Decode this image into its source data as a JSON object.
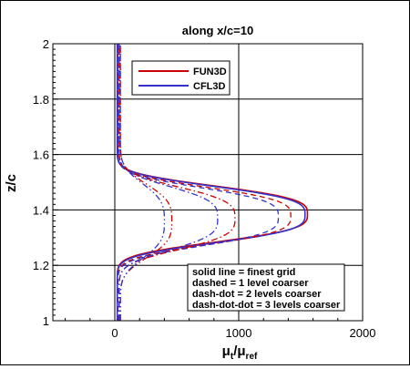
{
  "chart_data": {
    "type": "line",
    "title": "along x/c=10",
    "xlabel": {
      "base": "μ",
      "sub1": "t",
      "mid": "/μ",
      "sub2": "ref"
    },
    "ylabel": "z/c",
    "xlim": [
      -500,
      2000
    ],
    "ylim": [
      1,
      2
    ],
    "xticks": [
      0,
      1000,
      2000
    ],
    "yticks": [
      1,
      1.2,
      1.4,
      1.6,
      1.8,
      2
    ],
    "ytick_labels": [
      "1",
      "1.2",
      "1.4",
      "1.6",
      "1.8",
      "2"
    ],
    "xtick_labels": [
      "0",
      "1000",
      "2000"
    ],
    "grid": true,
    "legend": {
      "placement": "top-center",
      "entries": [
        {
          "label": "FUN3D",
          "color": "#cc0000"
        },
        {
          "label": "CFL3D",
          "color": "#3333cc"
        }
      ]
    },
    "annotation": {
      "placement": "bottom-right",
      "lines": [
        "solid line = finest grid",
        "dashed = 1 level coarser",
        "dash-dot = 2 levels coarser",
        "dash-dot-dot = 3 levels coarser"
      ]
    },
    "series": [
      {
        "code": "FUN3D",
        "grid": "finest",
        "color": "#cc0000",
        "dash": "solid",
        "peak": 1555,
        "center": 1.385,
        "width": 0.115,
        "base": 20
      },
      {
        "code": "CFL3D",
        "grid": "finest",
        "color": "#3333cc",
        "dash": "solid",
        "peak": 1535,
        "center": 1.383,
        "width": 0.116,
        "base": 20
      },
      {
        "code": "FUN3D",
        "grid": "1 level coarser",
        "color": "#cc0000",
        "dash": "dashed",
        "peak": 1420,
        "center": 1.378,
        "width": 0.118,
        "base": 25
      },
      {
        "code": "CFL3D",
        "grid": "1 level coarser",
        "color": "#3333cc",
        "dash": "dashed",
        "peak": 1320,
        "center": 1.375,
        "width": 0.12,
        "base": 25
      },
      {
        "code": "FUN3D",
        "grid": "2 levels coarser",
        "color": "#cc0000",
        "dash": "dash-dot",
        "peak": 970,
        "center": 1.37,
        "width": 0.128,
        "base": 35
      },
      {
        "code": "CFL3D",
        "grid": "2 levels coarser",
        "color": "#3333cc",
        "dash": "dash-dot",
        "peak": 830,
        "center": 1.37,
        "width": 0.13,
        "base": 35
      },
      {
        "code": "FUN3D",
        "grid": "3 levels coarser",
        "color": "#cc0000",
        "dash": "dash-dot-dot",
        "peak": 460,
        "center": 1.36,
        "width": 0.15,
        "base": 45
      },
      {
        "code": "CFL3D",
        "grid": "3 levels coarser",
        "color": "#3333cc",
        "dash": "dash-dot-dot",
        "peak": 400,
        "center": 1.36,
        "width": 0.152,
        "base": 45
      }
    ]
  }
}
